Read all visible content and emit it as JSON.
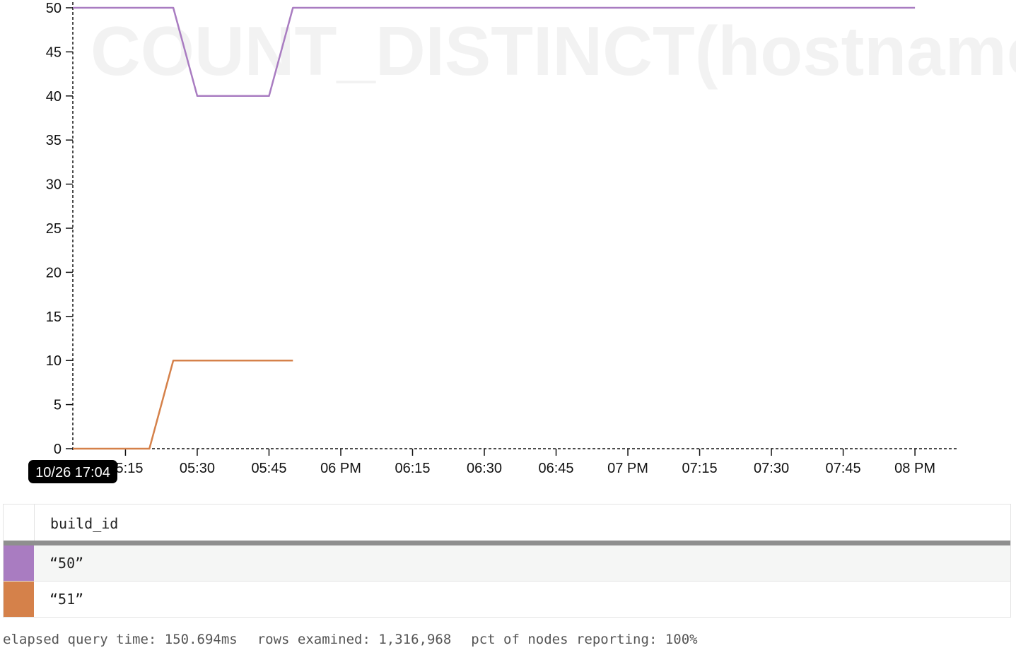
{
  "chart_data": {
    "type": "line",
    "watermark": "COUNT_DISTINCT(hostname)",
    "y_ticks": [
      0,
      5,
      10,
      15,
      20,
      25,
      30,
      35,
      40,
      45,
      50
    ],
    "ylim": [
      0,
      50
    ],
    "x_tick_labels": [
      "05:15",
      "05:30",
      "05:45",
      "06 PM",
      "06:15",
      "06:30",
      "06:45",
      "07 PM",
      "07:15",
      "07:30",
      "07:45",
      "08 PM"
    ],
    "x_tick_minutes": [
      1035,
      1050,
      1065,
      1080,
      1095,
      1110,
      1125,
      1140,
      1155,
      1170,
      1185,
      1200
    ],
    "xlim_minutes": [
      1024,
      1209
    ],
    "hover_label": "10/26 17:04",
    "hover_minute": 1024,
    "series": [
      {
        "name": "“50”",
        "color": "#a97cc1",
        "points": [
          [
            1024,
            50
          ],
          [
            1045,
            50
          ],
          [
            1050,
            40
          ],
          [
            1065,
            40
          ],
          [
            1070,
            50
          ],
          [
            1200,
            50
          ]
        ]
      },
      {
        "name": "“51”",
        "color": "#d5814a",
        "points": [
          [
            1024,
            0
          ],
          [
            1040,
            0
          ],
          [
            1045,
            10
          ],
          [
            1070,
            10
          ]
        ]
      }
    ]
  },
  "legend": {
    "column": "build_id",
    "rows": [
      {
        "label": "“50”",
        "color": "#a97cc1"
      },
      {
        "label": "“51”",
        "color": "#d5814a"
      }
    ]
  },
  "stats": {
    "elapsed": "elapsed query time: 150.694ms",
    "rows": "rows examined: 1,316,968",
    "pct": "pct of nodes reporting: 100%"
  }
}
